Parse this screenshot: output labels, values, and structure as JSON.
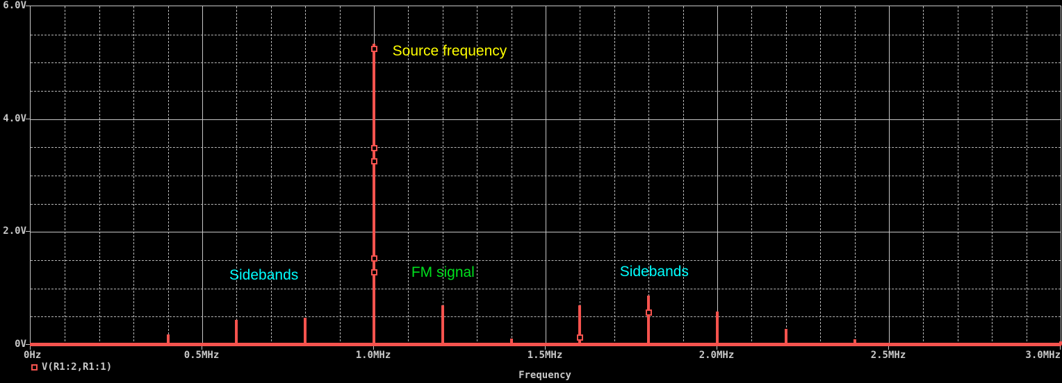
{
  "colors": {
    "background": "#000000",
    "grid": "#c8c8c8",
    "axis_text": "#c8c8c8",
    "trace": "#f5534e",
    "annotation_yellow": "#ffff00",
    "annotation_cyan": "#00ffff",
    "annotation_green": "#00e01e"
  },
  "chart_data": {
    "type": "bar",
    "subtype": "frequency-spectrum",
    "title": "",
    "xlabel": "Frequency",
    "ylabel": "",
    "x_unit": "MHz",
    "y_unit": "V",
    "xlim": [
      0,
      3.0
    ],
    "ylim": [
      0,
      6.0
    ],
    "grid": true,
    "x_minor_step_mhz": 0.1,
    "y_minor_step_v": 0.5,
    "x_major_ticks": [
      {
        "x": 0.0,
        "label": "0Hz",
        "align": "left"
      },
      {
        "x": 0.5,
        "label": "0.5MHz",
        "align": "center"
      },
      {
        "x": 1.0,
        "label": "1.0MHz",
        "align": "center"
      },
      {
        "x": 1.5,
        "label": "1.5MHz",
        "align": "center"
      },
      {
        "x": 2.0,
        "label": "2.0MHz",
        "align": "center"
      },
      {
        "x": 2.5,
        "label": "2.5MHz",
        "align": "center"
      },
      {
        "x": 3.0,
        "label": "3.0MHz",
        "align": "right"
      }
    ],
    "y_major_ticks": [
      {
        "y": 6.0,
        "label": "6.0V"
      },
      {
        "y": 4.0,
        "label": "4.0V"
      },
      {
        "y": 2.0,
        "label": "2.0V"
      },
      {
        "y": 0.0,
        "label": "0V"
      }
    ],
    "x_major_gridlines": [
      0.5,
      1.0,
      1.5,
      2.0,
      2.5
    ],
    "y_major_gridlines": [
      2.0,
      4.0
    ],
    "series": [
      {
        "name": "V(R1:2,R1:1)",
        "color": "#f5534e",
        "baseline_v": 0,
        "spikes": [
          {
            "f_mhz": 0.4,
            "v": 0.18,
            "markers": []
          },
          {
            "f_mhz": 0.6,
            "v": 0.44,
            "markers": []
          },
          {
            "f_mhz": 0.8,
            "v": 0.48,
            "markers": []
          },
          {
            "f_mhz": 1.0,
            "v": 5.34,
            "markers": [
              5.25,
              3.48,
              3.25,
              1.53,
              1.28
            ]
          },
          {
            "f_mhz": 1.2,
            "v": 0.7,
            "markers": []
          },
          {
            "f_mhz": 1.4,
            "v": 0.11,
            "markers": []
          },
          {
            "f_mhz": 1.6,
            "v": 0.7,
            "markers": [
              0.13
            ]
          },
          {
            "f_mhz": 1.8,
            "v": 0.87,
            "markers": [
              0.57
            ]
          },
          {
            "f_mhz": 2.0,
            "v": 0.59,
            "markers": []
          },
          {
            "f_mhz": 2.2,
            "v": 0.28,
            "markers": []
          },
          {
            "f_mhz": 2.4,
            "v": 0.1,
            "markers": []
          },
          {
            "f_mhz": 2.6,
            "v": 0.04,
            "markers": []
          },
          {
            "f_mhz": 3.0,
            "v": 0.06,
            "markers": []
          }
        ]
      }
    ],
    "annotations": [
      {
        "id": "source-frequency",
        "text": "Source frequency",
        "color": "#ffff00",
        "x_mhz": 1.056,
        "y_v": 5.19
      },
      {
        "id": "sidebands-left",
        "text": "Sidebands",
        "color": "#00ffff",
        "x_mhz": 0.581,
        "y_v": 1.22
      },
      {
        "id": "fm-signal",
        "text": "FM signal",
        "color": "#00e01e",
        "x_mhz": 1.111,
        "y_v": 1.27
      },
      {
        "id": "sidebands-right",
        "text": "Sidebands",
        "color": "#00ffff",
        "x_mhz": 1.718,
        "y_v": 1.28
      }
    ],
    "legend": {
      "position": "bottom-left",
      "marker": "open-square",
      "label": "V(R1:2,R1:1)"
    }
  }
}
